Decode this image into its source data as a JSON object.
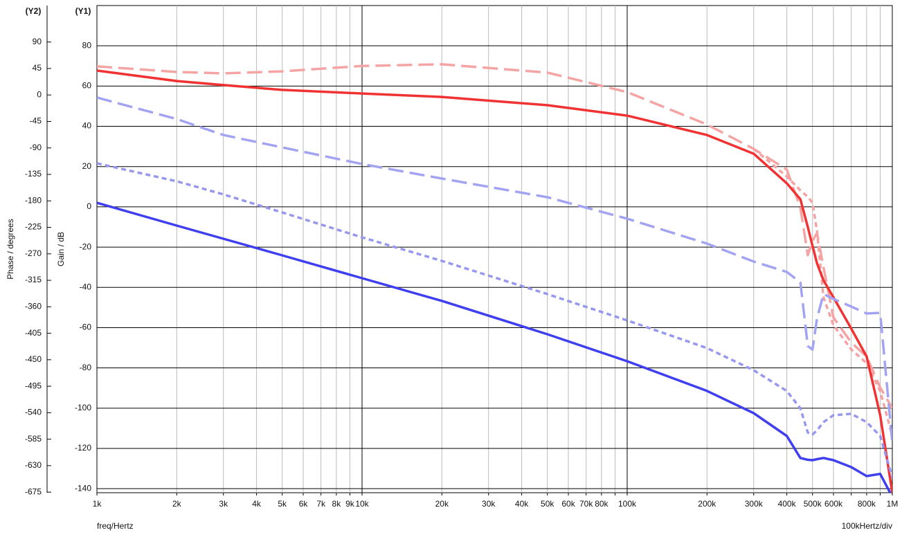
{
  "chart_data": {
    "type": "line",
    "y2_label_tag": "(Y2)",
    "y1_label_tag": "(Y1)",
    "y2_title": "Phase / degrees",
    "y_title": "Gain / dB",
    "x_title": "freq/Hertz",
    "x_scale_note": "100kHertz/div",
    "log_x": true,
    "grid": true,
    "xlim": [
      1000,
      1000000
    ],
    "ylim": [
      -142,
      100
    ],
    "y2lim": [
      -676,
      152
    ],
    "xticks": [
      {
        "value": 1000,
        "label": "1k"
      },
      {
        "value": 2000,
        "label": "2k"
      },
      {
        "value": 3000,
        "label": "3k"
      },
      {
        "value": 4000,
        "label": "4k"
      },
      {
        "value": 5000,
        "label": "5k"
      },
      {
        "value": 6000,
        "label": "6k"
      },
      {
        "value": 7000,
        "label": "7k"
      },
      {
        "value": 8000,
        "label": "8k"
      },
      {
        "value": 9000,
        "label": "9k"
      },
      {
        "value": 10000,
        "label": "10k"
      },
      {
        "value": 20000,
        "label": "20k"
      },
      {
        "value": 30000,
        "label": "30k"
      },
      {
        "value": 40000,
        "label": "40k"
      },
      {
        "value": 50000,
        "label": "50k"
      },
      {
        "value": 60000,
        "label": "60k"
      },
      {
        "value": 70000,
        "label": "70k"
      },
      {
        "value": 80000,
        "label": "80k"
      },
      {
        "value": 90000,
        "label": null
      },
      {
        "value": 100000,
        "label": "100k"
      },
      {
        "value": 200000,
        "label": "200k"
      },
      {
        "value": 300000,
        "label": "300k"
      },
      {
        "value": 400000,
        "label": "400k"
      },
      {
        "value": 500000,
        "label": "500k"
      },
      {
        "value": 600000,
        "label": "600k"
      },
      {
        "value": 700000,
        "label": null
      },
      {
        "value": 800000,
        "label": "800k"
      },
      {
        "value": 900000,
        "label": null
      },
      {
        "value": 1000000,
        "label": "1M"
      }
    ],
    "yticks": [
      80,
      60,
      40,
      20,
      0,
      -20,
      -40,
      -60,
      -80,
      -100,
      -120,
      -140
    ],
    "y2ticks": [
      90,
      45,
      0,
      -45,
      -90,
      -135,
      -180,
      -225,
      -270,
      -315,
      -360,
      -405,
      -450,
      -495,
      -540,
      -585,
      -630,
      -675
    ],
    "x": [
      1000,
      2000,
      3000,
      5000,
      10000,
      20000,
      50000,
      100000,
      200000,
      300000,
      400000,
      450000,
      480000,
      500000,
      520000,
      550000,
      600000,
      700000,
      800000,
      900000,
      1000000
    ],
    "series": [
      {
        "color": "#f5a3a3",
        "style": "dashed",
        "axis": "y1",
        "values": [
          69.8,
          67,
          66.3,
          67.3,
          70,
          70.8,
          66.7,
          57,
          40.9,
          28.8,
          18.5,
          -0.4,
          -24,
          -17,
          -13,
          -30,
          -55,
          -67.4,
          -74.3,
          -89.8,
          -100
        ]
      },
      {
        "color": "#f5a3a3",
        "style": "dotted",
        "axis": "y1",
        "values": [
          null,
          null,
          null,
          null,
          null,
          null,
          null,
          null,
          null,
          28.8,
          15.1,
          8.2,
          5,
          2,
          -12,
          -45,
          -58.8,
          -70.8,
          -77.7,
          -91.5,
          -113.8
        ]
      },
      {
        "color": "#f03232",
        "style": "solid",
        "axis": "y1",
        "values": [
          67.7,
          62.5,
          60.5,
          58.1,
          56.3,
          54.6,
          50.5,
          45.3,
          35.7,
          26.4,
          11.7,
          3.8,
          -10,
          -19.3,
          -28,
          -36.5,
          -45,
          -60.5,
          -74.3,
          -103.5,
          -142
        ]
      },
      {
        "color": "#a3a3f3",
        "style": "dashed",
        "axis": "y2",
        "values": [
          -4.4,
          -40.9,
          -68,
          -89.1,
          -117.3,
          -142,
          -173.8,
          -210.2,
          -252.6,
          -283,
          -300.8,
          -318.5,
          -426.7,
          -432.6,
          -380,
          -338.4,
          -346.7,
          -359.6,
          -371.4,
          -370.2,
          -591.3
        ]
      },
      {
        "color": "#9797f0",
        "style": "dotted",
        "axis": "y2",
        "values": [
          -116.2,
          -146.7,
          -169,
          -199.7,
          -242,
          -282,
          -338.4,
          -383.2,
          -430.2,
          -467.8,
          -503.1,
          -532.5,
          -573.7,
          -577.2,
          -570,
          -556,
          -544.3,
          -541.9,
          -556,
          -579.5,
          -650
        ]
      },
      {
        "color": "#3f3ff0",
        "style": "solid",
        "axis": "y2",
        "values": [
          -183.2,
          -222,
          -244.4,
          -272.6,
          -311.4,
          -350,
          -406.7,
          -452.5,
          -503,
          -540.7,
          -579.6,
          -617,
          -620,
          -620.7,
          -619,
          -617,
          -620.7,
          -632.5,
          -647.8,
          -644,
          -683
        ]
      }
    ]
  }
}
